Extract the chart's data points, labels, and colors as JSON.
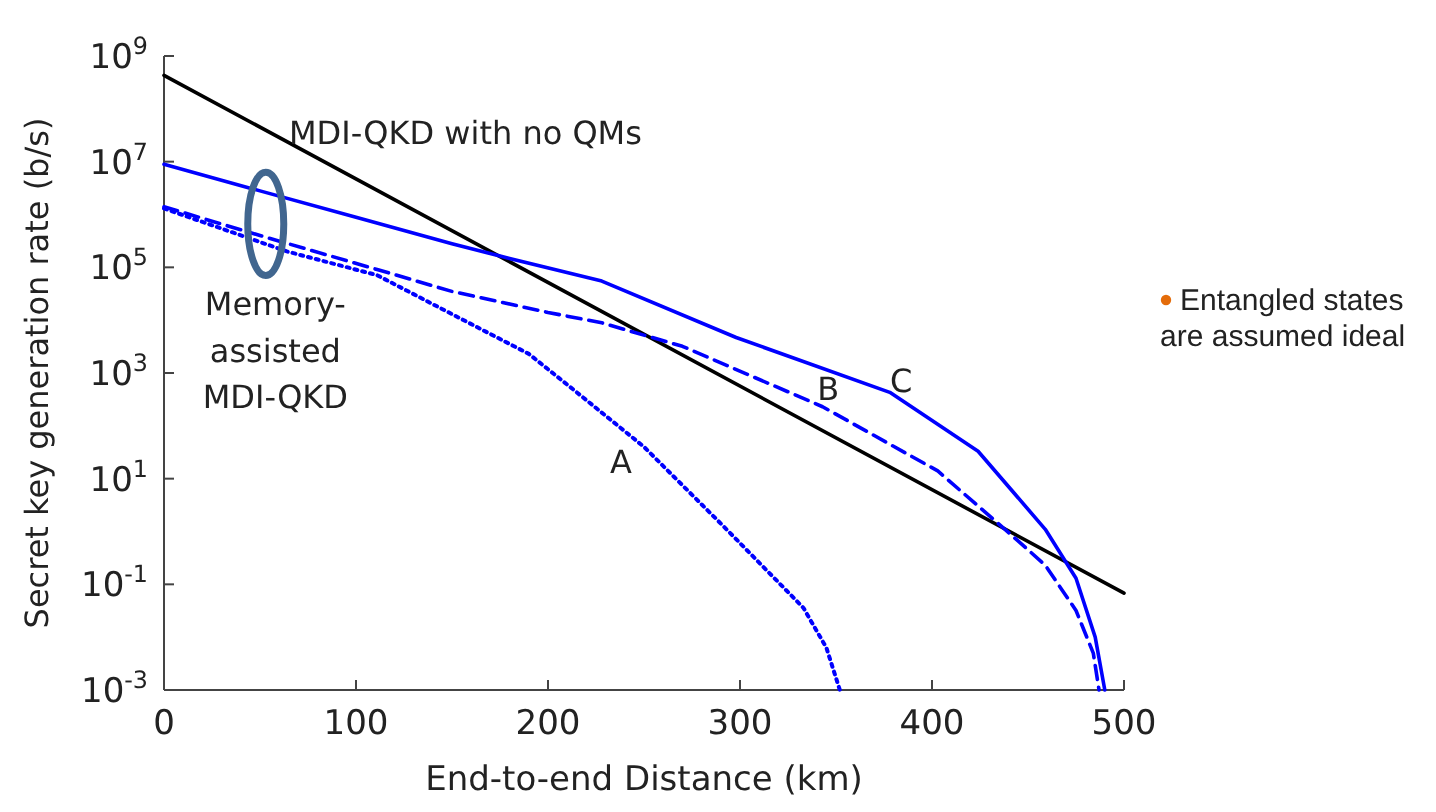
{
  "chart_data": {
    "type": "line",
    "xlabel": "End-to-end Distance (km)",
    "ylabel": "Secret key generation rate (b/s)",
    "log": "y",
    "xlim": [
      0,
      500
    ],
    "xticks": [
      0,
      100,
      200,
      300,
      400,
      500
    ],
    "ylim": [
      0.001,
      1000000000
    ],
    "yticks": [
      {
        "value": 1000000000,
        "label": "10$^{9}$"
      },
      {
        "value": 10000000,
        "label": "10$^{7}$"
      },
      {
        "value": 100000,
        "label": "10$^{5}$"
      },
      {
        "value": 1000,
        "label": "10$^{3}$"
      },
      {
        "value": 10,
        "label": "10$^{1}$"
      },
      {
        "value": 0.1,
        "label": "10$^{-1}$"
      },
      {
        "value": 0.001,
        "label": "10$^{-3}$"
      }
    ],
    "grid": false,
    "marker": "none",
    "series": [
      {
        "color": "#000000",
        "line_style": "solid",
        "x": [
          0,
          500
        ],
        "values": [
          430000000,
          0.068
        ]
      },
      {
        "color": "#0000ff",
        "line_style": "solid",
        "x": [
          0,
          50,
          100,
          150,
          176,
          228,
          298,
          378,
          424,
          459,
          475,
          485,
          490
        ],
        "values": [
          8900000,
          2800000,
          890000,
          280000,
          160000,
          55000,
          4700,
          430,
          33,
          1.1,
          0.13,
          0.01,
          0.001
        ]
      },
      {
        "color": "#0000ff",
        "line_style": "dashed",
        "x": [
          0,
          50,
          111,
          150,
          200,
          228,
          270,
          343,
          403,
          438,
          459,
          475,
          484,
          487
        ],
        "values": [
          1400000,
          400000,
          91000,
          35000,
          14000,
          8900,
          3200,
          230,
          14,
          1.1,
          0.23,
          0.032,
          0.005,
          0.001
        ]
      },
      {
        "color": "#0000ff",
        "line_style": "dotted",
        "x": [
          0,
          64,
          111,
          150,
          190,
          215,
          250,
          291,
          333,
          345,
          352
        ],
        "values": [
          1300000,
          200000,
          71000,
          13000,
          2300,
          430,
          40,
          1.3,
          0.036,
          0.0063,
          0.001
        ]
      }
    ],
    "annotations": [
      "MDI-QKD with no QMs",
      "Memory-\nassisted\nMDI-QKD",
      "A",
      "B",
      "C",
      "Entangled states\nare assumed ideal"
    ]
  }
}
